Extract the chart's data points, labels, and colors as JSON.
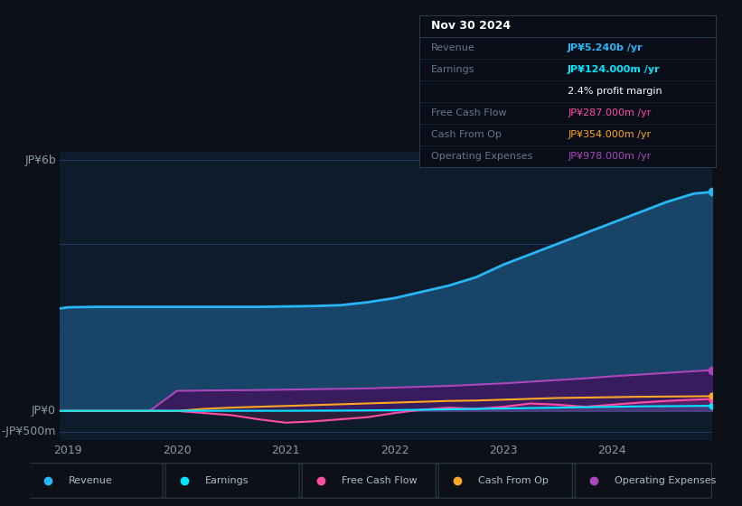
{
  "bg_color": "#0d1117",
  "plot_bg_color": "#0d1b2a",
  "years": [
    2018.92,
    2019.0,
    2019.25,
    2019.5,
    2019.75,
    2020.0,
    2020.25,
    2020.5,
    2020.75,
    2021.0,
    2021.25,
    2021.5,
    2021.75,
    2022.0,
    2022.25,
    2022.5,
    2022.75,
    2023.0,
    2023.25,
    2023.5,
    2023.75,
    2024.0,
    2024.25,
    2024.5,
    2024.75,
    2024.92
  ],
  "revenue": [
    2450,
    2480,
    2490,
    2490,
    2490,
    2490,
    2490,
    2490,
    2490,
    2500,
    2510,
    2530,
    2600,
    2700,
    2850,
    3000,
    3200,
    3500,
    3750,
    4000,
    4250,
    4500,
    4750,
    5000,
    5200,
    5240
  ],
  "operating_expenses": [
    0,
    0,
    0,
    0,
    0,
    480,
    490,
    495,
    500,
    510,
    520,
    530,
    540,
    560,
    580,
    600,
    630,
    660,
    700,
    740,
    780,
    830,
    870,
    910,
    950,
    978
  ],
  "earnings": [
    0,
    5,
    5,
    5,
    5,
    5,
    5,
    5,
    5,
    5,
    8,
    10,
    15,
    20,
    30,
    40,
    50,
    60,
    70,
    80,
    90,
    100,
    110,
    115,
    120,
    124
  ],
  "free_cash_flow": [
    0,
    0,
    0,
    0,
    0,
    0,
    -50,
    -100,
    -200,
    -280,
    -250,
    -200,
    -150,
    -50,
    30,
    80,
    50,
    100,
    180,
    150,
    100,
    150,
    200,
    240,
    270,
    287
  ],
  "cash_from_op": [
    0,
    0,
    0,
    0,
    0,
    0,
    50,
    80,
    100,
    120,
    140,
    160,
    180,
    200,
    220,
    240,
    250,
    270,
    290,
    310,
    320,
    330,
    340,
    345,
    350,
    354
  ],
  "revenue_color": "#29b6f6",
  "revenue_fill": "#1a4a6e",
  "earnings_color": "#00e5ff",
  "free_cash_flow_color": "#ff4da6",
  "cash_from_op_color": "#ffa726",
  "operating_expenses_color": "#ab47bc",
  "operating_expenses_fill": "#3a1a5e",
  "grid_color": "#1e3a5f",
  "text_color": "#8899aa",
  "ylim_min": -700,
  "ylim_max": 6200,
  "legend_items": [
    "Revenue",
    "Earnings",
    "Free Cash Flow",
    "Cash From Op",
    "Operating Expenses"
  ],
  "legend_colors": [
    "#29b6f6",
    "#00e5ff",
    "#ff4da6",
    "#ffa726",
    "#ab47bc"
  ],
  "info_box": {
    "date": "Nov 30 2024",
    "revenue_val": "JP¥5.240b /yr",
    "revenue_color": "#29b6f6",
    "earnings_val": "JP¥124.000m /yr",
    "earnings_color": "#00e5ff",
    "profit_margin": "2.4% profit margin",
    "fcf_val": "JP¥287.000m /yr",
    "fcf_color": "#ff4da6",
    "cash_op_val": "JP¥354.000m /yr",
    "cash_op_color": "#ffa726",
    "op_exp_val": "JP¥978.000m /yr",
    "op_exp_color": "#ab47bc"
  }
}
